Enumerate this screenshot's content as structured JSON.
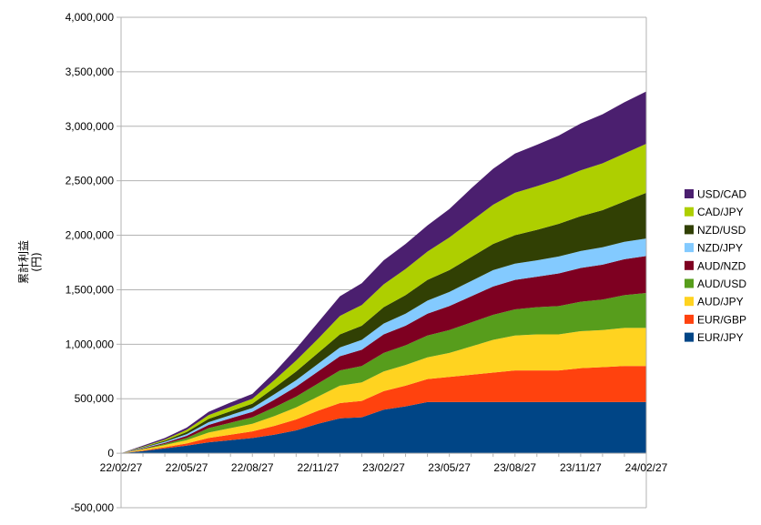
{
  "chart_data": {
    "type": "area",
    "stacked": true,
    "ylabel": "累計利益\n(円)",
    "ylim": [
      -500000,
      4000000
    ],
    "yticks": [
      -500000,
      0,
      500000,
      1000000,
      1500000,
      2000000,
      2500000,
      3000000,
      3500000,
      4000000
    ],
    "ytick_labels": [
      "-500,000",
      "0",
      "500,000",
      "1,000,000",
      "1,500,000",
      "2,000,000",
      "2,500,000",
      "3,000,000",
      "3,500,000",
      "4,000,000"
    ],
    "x_dates": [
      "22/02/27",
      "22/03/27",
      "22/04/27",
      "22/05/27",
      "22/06/27",
      "22/07/27",
      "22/08/27",
      "22/09/27",
      "22/10/27",
      "22/11/27",
      "22/12/27",
      "23/01/27",
      "23/02/27",
      "23/03/27",
      "23/04/27",
      "23/05/27",
      "23/06/27",
      "23/07/27",
      "23/08/27",
      "23/09/27",
      "23/10/27",
      "23/11/27",
      "23/12/27",
      "24/01/27",
      "24/02/27"
    ],
    "xtick_labels": [
      "22/02/27",
      "22/05/27",
      "22/08/27",
      "22/11/27",
      "23/02/27",
      "23/05/27",
      "23/08/27",
      "23/11/27",
      "24/02/27"
    ],
    "grid": true,
    "legend_position": "right",
    "series": [
      {
        "name": "EUR/JPY",
        "color": "#004586",
        "values": [
          0,
          20000,
          45000,
          70000,
          100000,
          120000,
          140000,
          170000,
          210000,
          270000,
          320000,
          330000,
          400000,
          430000,
          470000,
          470000,
          470000,
          470000,
          470000,
          470000,
          470000,
          470000,
          470000,
          470000,
          470000
        ]
      },
      {
        "name": "EUR/GBP",
        "color": "#ff420e",
        "values": [
          0,
          5000,
          10000,
          20000,
          40000,
          50000,
          60000,
          80000,
          100000,
          120000,
          140000,
          150000,
          170000,
          190000,
          210000,
          230000,
          250000,
          270000,
          290000,
          290000,
          290000,
          310000,
          320000,
          330000,
          330000
        ]
      },
      {
        "name": "AUD/JPY",
        "color": "#ffd320",
        "values": [
          0,
          10000,
          20000,
          30000,
          50000,
          60000,
          70000,
          90000,
          110000,
          130000,
          160000,
          170000,
          180000,
          190000,
          200000,
          220000,
          260000,
          300000,
          320000,
          330000,
          330000,
          340000,
          340000,
          350000,
          350000
        ]
      },
      {
        "name": "AUD/USD",
        "color": "#579d1c",
        "values": [
          0,
          5000,
          10000,
          20000,
          40000,
          50000,
          60000,
          80000,
          100000,
          120000,
          140000,
          150000,
          170000,
          180000,
          200000,
          210000,
          220000,
          230000,
          240000,
          250000,
          260000,
          270000,
          280000,
          300000,
          320000
        ]
      },
      {
        "name": "AUD/NZD",
        "color": "#7e0021",
        "values": [
          0,
          5000,
          10000,
          20000,
          30000,
          40000,
          50000,
          70000,
          90000,
          110000,
          130000,
          150000,
          170000,
          180000,
          200000,
          220000,
          240000,
          260000,
          270000,
          280000,
          300000,
          310000,
          320000,
          330000,
          340000
        ]
      },
      {
        "name": "NZD/JPY",
        "color": "#83caff",
        "values": [
          0,
          5000,
          10000,
          15000,
          25000,
          30000,
          35000,
          50000,
          60000,
          70000,
          80000,
          90000,
          100000,
          110000,
          120000,
          130000,
          140000,
          150000,
          150000,
          150000,
          155000,
          155000,
          160000,
          160000,
          160000
        ]
      },
      {
        "name": "NZD/USD",
        "color": "#314004",
        "values": [
          0,
          5000,
          10000,
          20000,
          30000,
          35000,
          40000,
          60000,
          80000,
          100000,
          120000,
          130000,
          150000,
          170000,
          190000,
          200000,
          220000,
          240000,
          260000,
          280000,
          300000,
          320000,
          340000,
          370000,
          420000
        ]
      },
      {
        "name": "CAD/JPY",
        "color": "#aecf00",
        "values": [
          0,
          5000,
          10000,
          20000,
          35000,
          40000,
          45000,
          70000,
          100000,
          130000,
          170000,
          190000,
          210000,
          240000,
          260000,
          300000,
          330000,
          360000,
          390000,
          400000,
          410000,
          420000,
          430000,
          440000,
          450000
        ]
      },
      {
        "name": "USD/CAD",
        "color": "#4b1f6f",
        "values": [
          0,
          10000,
          15000,
          20000,
          30000,
          40000,
          45000,
          70000,
          110000,
          150000,
          180000,
          200000,
          220000,
          230000,
          240000,
          260000,
          300000,
          330000,
          360000,
          380000,
          400000,
          430000,
          450000,
          470000,
          480000
        ]
      }
    ]
  }
}
